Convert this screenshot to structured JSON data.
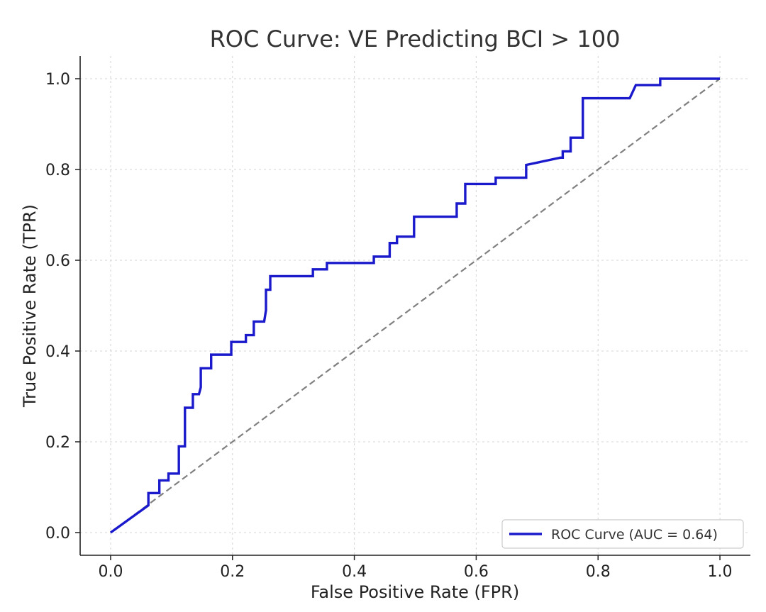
{
  "chart_data": {
    "type": "line",
    "title": "ROC Curve: VE Predicting BCI > 100",
    "xlabel": "False Positive Rate (FPR)",
    "ylabel": "True Positive Rate (TPR)",
    "xlim": [
      -0.05,
      1.05
    ],
    "ylim": [
      -0.05,
      1.05
    ],
    "x_ticks": [
      "0.0",
      "0.2",
      "0.4",
      "0.6",
      "0.8",
      "1.0"
    ],
    "y_ticks": [
      "0.0",
      "0.2",
      "0.4",
      "0.6",
      "0.8",
      "1.0"
    ],
    "grid": true,
    "legend_position": "lower-right",
    "series": [
      {
        "name": "ROC Curve (AUC = 0.64)",
        "color": "#1a1acc",
        "style": "solid",
        "x": [
          0.0,
          0.062,
          0.062,
          0.08,
          0.08,
          0.095,
          0.095,
          0.112,
          0.112,
          0.122,
          0.122,
          0.135,
          0.135,
          0.145,
          0.148,
          0.148,
          0.165,
          0.165,
          0.198,
          0.198,
          0.222,
          0.222,
          0.235,
          0.235,
          0.252,
          0.255,
          0.255,
          0.262,
          0.262,
          0.332,
          0.332,
          0.355,
          0.355,
          0.432,
          0.432,
          0.458,
          0.458,
          0.47,
          0.47,
          0.498,
          0.498,
          0.568,
          0.568,
          0.582,
          0.582,
          0.632,
          0.632,
          0.682,
          0.682,
          0.738,
          0.742,
          0.742,
          0.755,
          0.755,
          0.775,
          0.775,
          0.852,
          0.862,
          0.902,
          0.902,
          1.0
        ],
        "y": [
          0.0,
          0.06,
          0.087,
          0.087,
          0.115,
          0.115,
          0.13,
          0.13,
          0.19,
          0.19,
          0.275,
          0.275,
          0.305,
          0.305,
          0.32,
          0.362,
          0.362,
          0.392,
          0.392,
          0.42,
          0.42,
          0.435,
          0.435,
          0.465,
          0.465,
          0.49,
          0.535,
          0.535,
          0.565,
          0.565,
          0.58,
          0.58,
          0.594,
          0.594,
          0.608,
          0.608,
          0.638,
          0.638,
          0.652,
          0.652,
          0.696,
          0.696,
          0.725,
          0.725,
          0.768,
          0.768,
          0.782,
          0.782,
          0.81,
          0.826,
          0.826,
          0.84,
          0.84,
          0.87,
          0.87,
          0.957,
          0.957,
          0.986,
          0.986,
          1.0,
          1.0
        ]
      },
      {
        "color": "#808080",
        "style": "dashed",
        "x": [
          0.0,
          1.0
        ],
        "y": [
          0.0,
          1.0
        ]
      }
    ]
  }
}
